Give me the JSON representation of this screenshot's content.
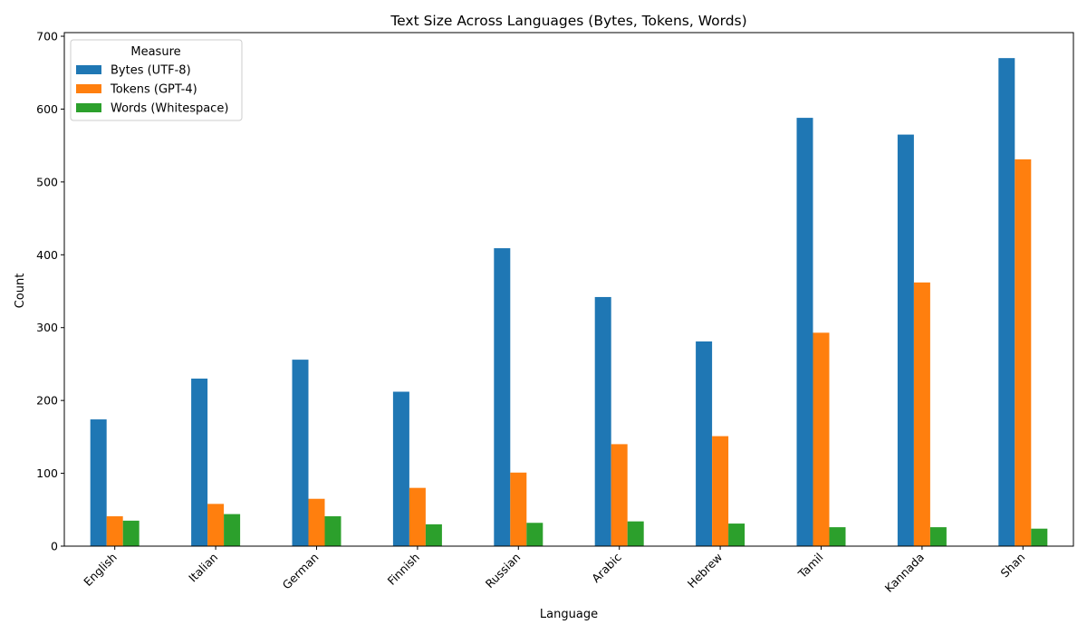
{
  "chart_data": {
    "type": "bar",
    "title": "Text Size Across Languages (Bytes, Tokens, Words)",
    "xlabel": "Language",
    "ylabel": "Count",
    "ylim": [
      0,
      705
    ],
    "yticks": [
      0,
      100,
      200,
      300,
      400,
      500,
      600,
      700
    ],
    "categories": [
      "English",
      "Italian",
      "German",
      "Finnish",
      "Russian",
      "Arabic",
      "Hebrew",
      "Tamil",
      "Kannada",
      "Shan"
    ],
    "series": [
      {
        "name": "Bytes (UTF-8)",
        "color": "#1f77b4",
        "values": [
          174,
          230,
          256,
          212,
          409,
          342,
          281,
          588,
          565,
          670
        ]
      },
      {
        "name": "Tokens (GPT-4)",
        "color": "#ff7f0e",
        "values": [
          41,
          58,
          65,
          80,
          101,
          140,
          151,
          293,
          362,
          531
        ]
      },
      {
        "name": "Words (Whitespace)",
        "color": "#2ca02c",
        "values": [
          35,
          44,
          41,
          30,
          32,
          34,
          31,
          26,
          26,
          24
        ]
      }
    ],
    "legend": {
      "title": "Measure",
      "position": "top-left"
    },
    "grid": false
  }
}
